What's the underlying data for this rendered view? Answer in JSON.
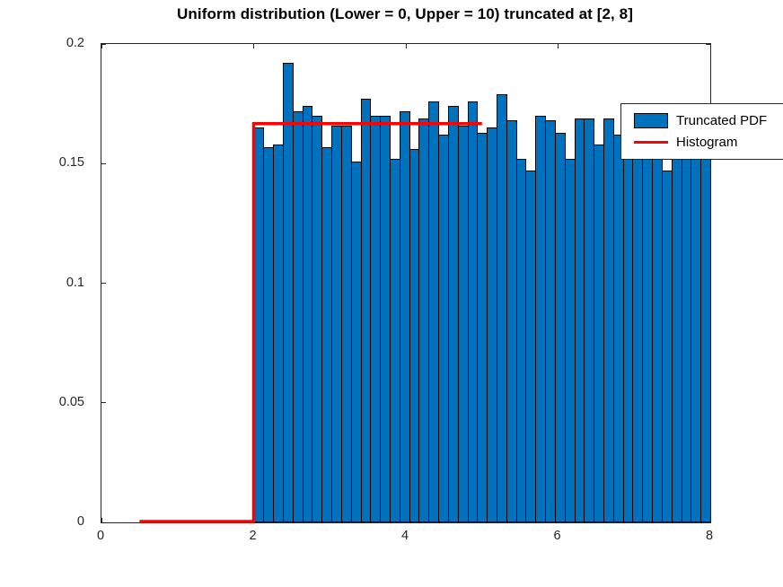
{
  "chart_data": {
    "type": "bar",
    "title": "Uniform distribution (Lower = 0, Upper = 10) truncated at [2, 8]",
    "grid": false,
    "background_color": "#ffffff",
    "axis_color": "#262626",
    "xlim": [
      0,
      8
    ],
    "ylim": [
      0,
      0.2
    ],
    "x_ticks": {
      "values": [
        0,
        2,
        4,
        6,
        8
      ],
      "labels": [
        "0",
        "2",
        "4",
        "6",
        "8"
      ]
    },
    "y_ticks": {
      "values": [
        0,
        0.05,
        0.1,
        0.15,
        0.2
      ],
      "labels": [
        "0",
        "0.05",
        "0.1",
        "0.15",
        "0.2"
      ]
    },
    "bar_series": {
      "name": "Truncated PDF",
      "fill_color": "#0072BD",
      "edge_color": "#000000",
      "bin_start": 2,
      "bin_end": 8,
      "bin_count": 47,
      "values": [
        0.165,
        0.157,
        0.158,
        0.192,
        0.172,
        0.174,
        0.17,
        0.157,
        0.166,
        0.166,
        0.151,
        0.177,
        0.17,
        0.17,
        0.152,
        0.172,
        0.156,
        0.169,
        0.176,
        0.162,
        0.174,
        0.166,
        0.176,
        0.163,
        0.165,
        0.179,
        0.168,
        0.152,
        0.147,
        0.17,
        0.168,
        0.163,
        0.152,
        0.169,
        0.169,
        0.158,
        0.169,
        0.162,
        0.165,
        0.166,
        0.169,
        0.17,
        0.147,
        0.17,
        0.17,
        0.155,
        0.169
      ]
    },
    "line_series": {
      "name": "Histogram",
      "color": "#FF0000",
      "line_width": 3.5,
      "points": [
        [
          0.5,
          0
        ],
        [
          2,
          0
        ],
        [
          2,
          0.1667
        ],
        [
          5,
          0.1667
        ]
      ]
    },
    "legend": {
      "position": "top-right",
      "entries": [
        {
          "label": "Truncated PDF",
          "type": "patch",
          "color": "#0072BD"
        },
        {
          "label": "Histogram",
          "type": "line",
          "color": "#FF0000"
        }
      ]
    }
  }
}
